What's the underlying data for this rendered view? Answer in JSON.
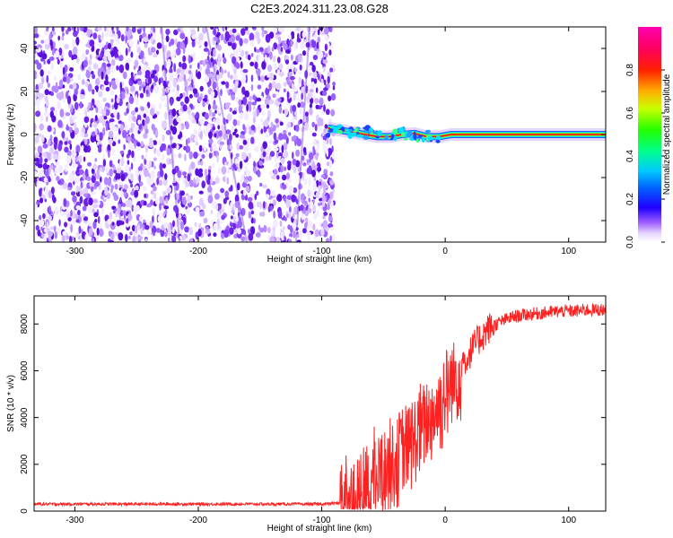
{
  "title": "C2E3.2024.311.23.08.G28",
  "colors": {
    "snr_line": "#ff2020",
    "spectrogram_noise": "#7a2cf0",
    "signal_core": "#e8001c",
    "colormap": [
      "#ffffff",
      "#f0e0ff",
      "#b070ff",
      "#6a00ff",
      "#0040ff",
      "#00b8ff",
      "#00ff90",
      "#40ff00",
      "#e0ff00",
      "#ffb000",
      "#ff3000",
      "#ff0070",
      "#ff00b0"
    ]
  },
  "chart_data": [
    {
      "type": "heatmap",
      "title": "C2E3.2024.311.23.08.G28",
      "xlabel": "Height of straight line (km)",
      "ylabel": "Frequency (Hz)",
      "xlim": [
        -333,
        130
      ],
      "ylim": [
        -50,
        50
      ],
      "xticks": [
        -300,
        -200,
        -100,
        0,
        100
      ],
      "yticks": [
        -40,
        -20,
        0,
        20,
        40
      ],
      "noise_region_x": [
        -333,
        -90
      ],
      "signal_track": {
        "x": [
          -95,
          -85,
          -75,
          -65,
          -55,
          -45,
          -35,
          -25,
          -15,
          -5,
          5,
          20,
          40,
          60,
          80,
          100,
          130
        ],
        "y": [
          3,
          2,
          1,
          0,
          -1,
          -1,
          0,
          0.5,
          -1,
          -1,
          0,
          0,
          0,
          0,
          0,
          0,
          0
        ]
      },
      "colorbar": {
        "label": "Normalized spectral amplitude",
        "range": [
          0,
          1
        ],
        "ticks": [
          0.0,
          0.2,
          0.4,
          0.6,
          0.8
        ]
      }
    },
    {
      "type": "line",
      "xlabel": "Height of straight line (km)",
      "ylabel": "SNR (10 * v/v)",
      "xlim": [
        -333,
        130
      ],
      "ylim": [
        0,
        9200
      ],
      "xticks": [
        -300,
        -200,
        -100,
        0,
        100
      ],
      "yticks": [
        0,
        2000,
        4000,
        6000,
        8000
      ],
      "series": [
        {
          "x": [
            -333,
            -300,
            -250,
            -200,
            -150,
            -100,
            -85,
            -75,
            -65,
            -55,
            -45,
            -35,
            -25,
            -15,
            -5,
            5,
            15,
            25,
            35,
            45,
            55,
            65,
            75,
            85,
            95,
            105,
            115,
            130
          ],
          "y": [
            300,
            300,
            300,
            300,
            300,
            300,
            350,
            500,
            900,
            1500,
            2000,
            2500,
            3000,
            3800,
            4500,
            5400,
            6300,
            7200,
            7800,
            8100,
            8300,
            8400,
            8450,
            8500,
            8550,
            8550,
            8600,
            8600
          ]
        }
      ]
    }
  ]
}
